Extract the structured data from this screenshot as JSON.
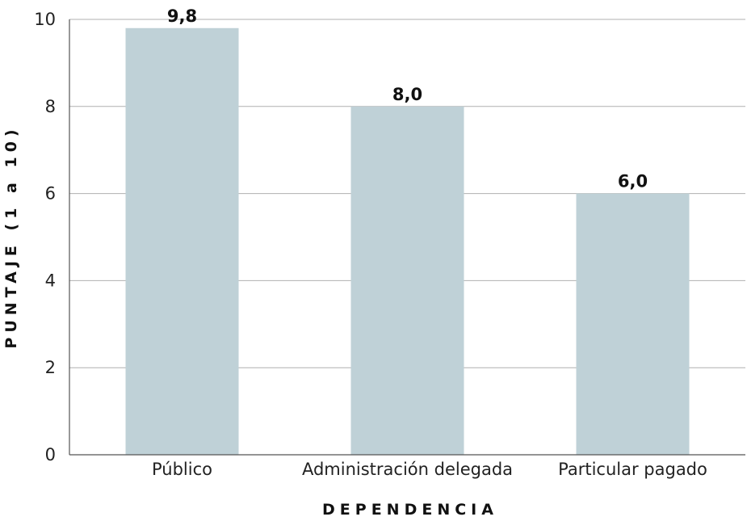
{
  "chart_data": {
    "type": "bar",
    "categories": [
      "Público",
      "Administración delegada",
      "Particular pagado"
    ],
    "values": [
      9.8,
      8.0,
      6.0
    ],
    "value_labels": [
      "9,8",
      "8,0",
      "6,0"
    ],
    "xlabel": "DEPENDENCIA",
    "ylabel": "PUNTAJE (1 a 10)",
    "ylim": [
      0,
      10
    ],
    "yticks": [
      0,
      2,
      4,
      6,
      8,
      10
    ],
    "grid": true,
    "colors": {
      "bar": "#bfd1d7"
    }
  }
}
